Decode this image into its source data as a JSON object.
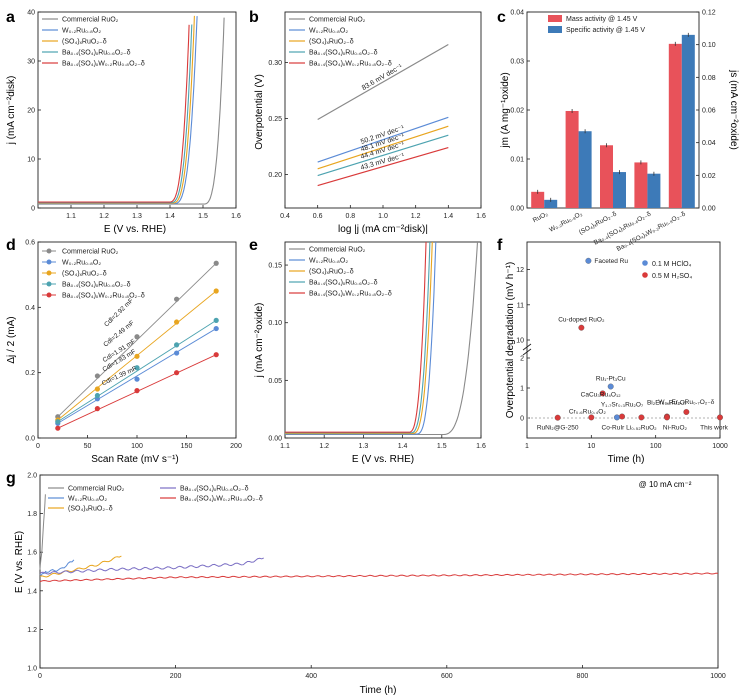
{
  "colors": {
    "ruo2": "#8a8a8a",
    "w": "#5b8bd6",
    "so4": "#e8a51f",
    "ba": "#4da3b0",
    "baw": "#d93a3a",
    "purple": "#7b6fc4",
    "axis": "#222222",
    "bar_mass": "#e8525a",
    "bar_spec": "#3d7ab8"
  },
  "panels": {
    "a": {
      "label": "a",
      "xlabel": "E (V vs. RHE)",
      "ylabel": "j (mA cm⁻²disk)"
    },
    "b": {
      "label": "b",
      "xlabel": "log |j (mA cm⁻²disk)|",
      "ylabel": "Overpotential (V)"
    },
    "c": {
      "label": "c",
      "ylabel_left": "jm (A mg⁻¹oxide)",
      "ylabel_right": "js (mA cm⁻²oxide)"
    },
    "d": {
      "label": "d",
      "xlabel": "Scan Rate (mV s⁻¹)",
      "ylabel": "Δj / 2 (mA)"
    },
    "e": {
      "label": "e",
      "xlabel": "E (V vs. RHE)",
      "ylabel": "j (mA cm⁻²oxide)"
    },
    "f": {
      "label": "f",
      "xlabel": "Time (h)",
      "ylabel": "Overpotential degradation (mV h⁻¹)"
    },
    "g": {
      "label": "g",
      "xlabel": "Time (h)",
      "ylabel": "E (V vs. RHE)",
      "annotation": "@ 10 mA cm⁻²"
    }
  },
  "legend_lsv": [
    "Commercial RuO₂",
    "W₀.₂Ru₀.₈O₂",
    "(SO₄)ₓRuO₂₋δ",
    "Ba₀.₄(SO₄)ₓRu₀.₆O₂₋δ",
    "Ba₀.₄(SO₄)ₓW₀.₂Ru₀.₈O₂₋δ"
  ],
  "chart_data": [
    {
      "panel": "a",
      "type": "line",
      "xlim": [
        1.0,
        1.6
      ],
      "ylim": [
        0,
        40
      ],
      "xticks": [
        "1.1",
        "1.2",
        "1.3",
        "1.4",
        "1.5",
        "1.6"
      ],
      "yticks": [
        "0",
        "10",
        "20",
        "30",
        "40"
      ],
      "series": [
        {
          "name": "Commercial RuO₂",
          "onset": 1.5,
          "end": 1.565
        },
        {
          "name": "W₀.₂Ru₀.₈O₂",
          "onset": 1.41,
          "end": 1.483
        },
        {
          "name": "(SO₄)ₓRuO₂₋δ",
          "onset": 1.405,
          "end": 1.475
        },
        {
          "name": "Ba₀.₄(SO₄)ₓRu₀.₆O₂₋δ",
          "onset": 1.4,
          "end": 1.468
        },
        {
          "name": "Ba₀.₄(SO₄)ₓW₀.₂Ru₀.₈O₂₋δ",
          "onset": 1.395,
          "end": 1.46
        }
      ]
    },
    {
      "panel": "b",
      "type": "line",
      "xlim": [
        0.4,
        1.6
      ],
      "ylim": [
        0.17,
        0.345
      ],
      "xticks": [
        "0.4",
        "0.6",
        "0.8",
        "1.0",
        "1.2",
        "1.4",
        "1.6"
      ],
      "yticks": [
        "0.20",
        "0.25",
        "0.30"
      ],
      "series": [
        {
          "name": "Commercial RuO₂",
          "x": [
            0.6,
            1.4
          ],
          "y": [
            0.249,
            0.316
          ],
          "tafel": "83.6 mV dec⁻¹"
        },
        {
          "name": "W₀.₂Ru₀.₈O₂",
          "x": [
            0.6,
            1.4
          ],
          "y": [
            0.211,
            0.251
          ],
          "tafel": "50.2 mV dec⁻¹"
        },
        {
          "name": "(SO₄)ₓRuO₂₋δ",
          "x": [
            0.6,
            1.4
          ],
          "y": [
            0.205,
            0.243
          ],
          "tafel": "48.1 mV dec⁻¹"
        },
        {
          "name": "Ba₀.₄(SO₄)ₓRu₀.₆O₂₋δ",
          "x": [
            0.6,
            1.4
          ],
          "y": [
            0.199,
            0.235
          ],
          "tafel": "44.4 mV dec⁻¹"
        },
        {
          "name": "Ba₀.₄(SO₄)ₓW₀.₂Ru₀.₈O₂₋δ",
          "x": [
            0.6,
            1.4
          ],
          "y": [
            0.19,
            0.224
          ],
          "tafel": "43.3 mV dec⁻¹"
        }
      ]
    },
    {
      "panel": "c",
      "type": "bar",
      "categories": [
        "RuO₂",
        "W₀.₂Ru₀.₈O₂",
        "(SO₄)ₓRuO₂₋δ",
        "Ba₀.₄(SO₄)ₓRu₀.₆O₂₋δ",
        "Ba₀.₄(SO₄)ₓW₀.₂Ru₀.₈O₂₋δ"
      ],
      "ylim_left": [
        0,
        0.04
      ],
      "ylim_right": [
        0,
        0.12
      ],
      "yticks_left": [
        "0.00",
        "0.01",
        "0.02",
        "0.03",
        "0.04"
      ],
      "yticks_right": [
        "0.00",
        "0.02",
        "0.04",
        "0.06",
        "0.08",
        "0.10",
        "0.12"
      ],
      "series": [
        {
          "name": "Mass activity @ 1.45 V",
          "values": [
            0.0033,
            0.0198,
            0.0128,
            0.0093,
            0.0335
          ]
        },
        {
          "name": "Specific activity @ 1.45 V",
          "values": [
            0.005,
            0.047,
            0.022,
            0.021,
            0.106
          ]
        }
      ]
    },
    {
      "panel": "d",
      "type": "scatter",
      "xlim": [
        0,
        200
      ],
      "ylim": [
        0,
        0.6
      ],
      "xticks": [
        "0",
        "50",
        "100",
        "150",
        "200"
      ],
      "yticks": [
        "0.0",
        "0.2",
        "0.4",
        "0.6"
      ],
      "x": [
        20,
        60,
        100,
        140,
        180
      ],
      "series": [
        {
          "name": "Commercial RuO₂",
          "values": [
            0.065,
            0.19,
            0.31,
            0.425,
            0.535
          ],
          "cdl": "Cdl=2.92 mF"
        },
        {
          "name": "W₀.₂Ru₀.₈O₂",
          "values": [
            0.045,
            0.12,
            0.18,
            0.26,
            0.335
          ],
          "cdl": "Cdl=1.83 mF"
        },
        {
          "name": "(SO₄)ₓRuO₂₋δ",
          "values": [
            0.055,
            0.15,
            0.25,
            0.355,
            0.45
          ],
          "cdl": "Cdl=2.49 mF"
        },
        {
          "name": "Ba₀.₄(SO₄)ₓRu₀.₆O₂₋δ",
          "values": [
            0.05,
            0.13,
            0.215,
            0.285,
            0.36
          ],
          "cdl": "Cdl=1.91 mF"
        },
        {
          "name": "Ba₀.₄(SO₄)ₓW₀.₂Ru₀.₈O₂₋δ",
          "values": [
            0.03,
            0.09,
            0.145,
            0.2,
            0.255
          ],
          "cdl": "Cdl=1.39 mF"
        }
      ]
    },
    {
      "panel": "e",
      "type": "line",
      "xlim": [
        1.1,
        1.6
      ],
      "ylim": [
        0,
        0.17
      ],
      "xticks": [
        "1.1",
        "1.2",
        "1.3",
        "1.4",
        "1.5",
        "1.6"
      ],
      "yticks": [
        "0.00",
        "0.05",
        "0.10",
        "0.15"
      ],
      "series": [
        {
          "name": "Commercial RuO₂",
          "onset": 1.5,
          "end": 1.595
        },
        {
          "name": "W₀.₂Ru₀.₈O₂",
          "onset": 1.435,
          "end": 1.487
        },
        {
          "name": "(SO₄)ₓRuO₂₋δ",
          "onset": 1.425,
          "end": 1.478
        },
        {
          "name": "Ba₀.₄(SO₄)ₓRu₀.₆O₂₋δ",
          "onset": 1.42,
          "end": 1.472
        },
        {
          "name": "Ba₀.₄(SO₄)ₓW₀.₂Ru₀.₈O₂₋δ",
          "onset": 1.415,
          "end": 1.462
        }
      ]
    },
    {
      "panel": "f",
      "type": "scatter",
      "xscale": "log",
      "xlim": [
        1,
        1000
      ],
      "xticks": [
        "1",
        "10",
        "100",
        "1000"
      ],
      "yticks": [
        "0",
        "1",
        "2",
        "10",
        "11",
        "12"
      ],
      "legend": [
        "0.1 M HClO₄",
        "0.5 M H₂SO₄"
      ],
      "points": [
        {
          "label": "Faceted Ru",
          "x": 9,
          "y": 12.25,
          "acid": "HClO4"
        },
        {
          "label": "Cu-doped RuO₂",
          "x": 7,
          "y": 10.35,
          "acid": "H2SO4"
        },
        {
          "label": "Ru₁-Pt₃Cu",
          "x": 20,
          "y": 1.05,
          "acid": "HClO4"
        },
        {
          "label": "CaCu₃Ru₄O₁₂",
          "x": 15,
          "y": 0.82,
          "acid": "H2SO4"
        },
        {
          "label": "Y₁.₇Sr₀.₃Ru₂O₇",
          "x": 30,
          "y": 0.05,
          "acid": "H2SO4"
        },
        {
          "label": "W₀.₂Er₀.₁Ru₀.₇O₂₋δ",
          "x": 300,
          "y": 0.2,
          "acid": "H2SO4"
        },
        {
          "label": "Bi₂Er₀.₄Ru₂O₇",
          "x": 150,
          "y": 0.05,
          "acid": "H2SO4"
        },
        {
          "label": "Cr₀.₆Ru₀.₄O₂",
          "x": 10,
          "y": 0.02,
          "acid": "H2SO4"
        },
        {
          "label": "RuNi₂@G-250",
          "x": 3,
          "y": 0.01,
          "acid": "H2SO4"
        },
        {
          "label": "Co-RuIr",
          "x": 25,
          "y": 0.02,
          "acid": "HClO4"
        },
        {
          "label": "Li₀.₅₂RuO₂",
          "x": 60,
          "y": 0.02,
          "acid": "H2SO4"
        },
        {
          "label": "Ni-RuO₂",
          "x": 150,
          "y": 0.02,
          "acid": "H2SO4"
        },
        {
          "label": "This work",
          "x": 1000,
          "y": 0.02,
          "acid": "H2SO4"
        }
      ]
    },
    {
      "panel": "g",
      "type": "line",
      "xlim": [
        0,
        1000
      ],
      "ylim": [
        1.0,
        2.0
      ],
      "xticks": [
        "0",
        "200",
        "400",
        "600",
        "800",
        "1000"
      ],
      "yticks": [
        "1.0",
        "1.2",
        "1.4",
        "1.6",
        "1.8",
        "2.0"
      ],
      "series": [
        {
          "name": "Commercial RuO₂",
          "x": [
            0,
            3,
            8
          ],
          "y": [
            1.51,
            1.62,
            1.9
          ]
        },
        {
          "name": "W₀.₂Ru₀.₈O₂",
          "x": [
            0,
            10,
            30,
            50
          ],
          "y": [
            1.48,
            1.5,
            1.51,
            1.56
          ]
        },
        {
          "name": "(SO₄)ₓRuO₂₋δ",
          "x": [
            0,
            40,
            80,
            120
          ],
          "y": [
            1.47,
            1.5,
            1.53,
            1.58
          ]
        },
        {
          "name": "Ba₀.₄(SO₄)ₓRu₀.₆O₂₋δ",
          "x": [
            0,
            100,
            200,
            300,
            330
          ],
          "y": [
            1.49,
            1.51,
            1.52,
            1.54,
            1.57
          ]
        },
        {
          "name": "Ba₀.₄(SO₄)ₓW₀.₂Ru₀.₈O₂₋δ",
          "x": [
            0,
            200,
            400,
            600,
            800,
            1000
          ],
          "y": [
            1.45,
            1.47,
            1.475,
            1.48,
            1.485,
            1.49
          ]
        }
      ]
    }
  ]
}
